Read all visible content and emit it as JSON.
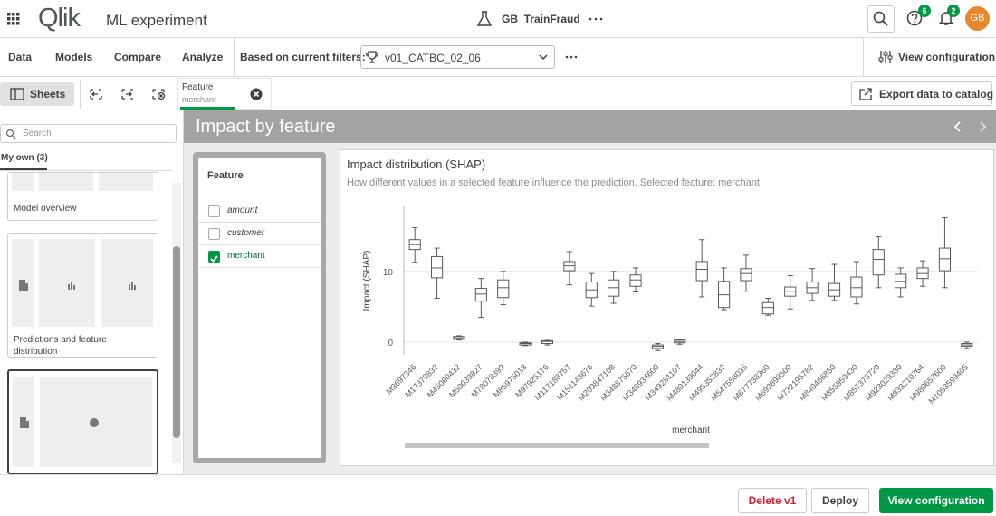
{
  "header": {
    "logo": "Qlik",
    "title": "ML experiment",
    "experiment": "GB_TrainFraud",
    "help_badge": "6",
    "notifications_badge": "2",
    "avatar": "GB"
  },
  "nav": {
    "tabs": [
      "Data",
      "Models",
      "Compare",
      "Analyze"
    ],
    "filter_label": "Based on current filters:",
    "model_select": "v01_CATBC_02_06",
    "view_configuration": "View configuration"
  },
  "toolbar": {
    "sheets": "Sheets",
    "filter_chip": {
      "label": "Feature",
      "value": "merchant"
    },
    "export": "Export data to catalog"
  },
  "sidebar": {
    "search_placeholder": "Search",
    "tab": "My own (3)",
    "sheets": [
      "Model overview",
      "Predictions and feature distribution"
    ]
  },
  "sheet": {
    "title": "Impact by feature"
  },
  "feature_list": {
    "title": "Feature",
    "items": [
      {
        "label": "amount",
        "checked": false
      },
      {
        "label": "customer",
        "checked": false
      },
      {
        "label": "merchant",
        "checked": true
      }
    ]
  },
  "chart_data": {
    "type": "box",
    "title": "Impact distribution (SHAP)",
    "subtitle": "How different values in a selected feature influence the prediction. Selected feature: merchant",
    "y_label": "Impact (SHAP)",
    "x_label": "merchant",
    "categories": [
      "M3697346",
      "M17379832",
      "M45060432",
      "M50039827",
      "M78078399",
      "M85975013",
      "M97925176",
      "M117188757",
      "M151143676",
      "M209847108",
      "M348875670",
      "M348934600",
      "M349281107",
      "M480139044",
      "M495352832",
      "M547558035",
      "M677738360",
      "M692898500",
      "M732195782",
      "M840466850",
      "M855959430",
      "M857378720",
      "M923029380",
      "M933210764",
      "M980657600",
      "M1053599405"
    ],
    "min": [
      11.3,
      6.2,
      0.3,
      3.5,
      5.3,
      -0.5,
      -0.4,
      8.1,
      5.1,
      5.5,
      7.1,
      -1.2,
      -0.3,
      6.4,
      4.6,
      7.2,
      3.8,
      4.7,
      5.9,
      5.9,
      5.4,
      7.7,
      6.4,
      7.9,
      7.7,
      -0.9
    ],
    "q1": [
      13.1,
      9.1,
      0.4,
      5.8,
      6.3,
      -0.4,
      -0.2,
      10.1,
      6.3,
      6.5,
      7.9,
      -0.9,
      -0.1,
      8.7,
      4.9,
      8.7,
      4.0,
      6.5,
      6.9,
      6.5,
      6.4,
      9.5,
      7.7,
      9.0,
      10.1,
      -0.6
    ],
    "median": [
      13.8,
      10.5,
      0.6,
      6.8,
      7.7,
      -0.2,
      0.1,
      10.8,
      7.4,
      7.7,
      8.8,
      -0.6,
      0.1,
      10.3,
      6.7,
      9.7,
      4.9,
      7.2,
      7.7,
      7.4,
      7.7,
      11.7,
      8.6,
      9.7,
      11.8,
      -0.4
    ],
    "q3": [
      14.5,
      12.1,
      0.8,
      7.6,
      8.8,
      -0.1,
      0.2,
      11.4,
      8.5,
      8.8,
      9.5,
      -0.4,
      0.3,
      11.4,
      8.6,
      10.4,
      5.6,
      7.8,
      8.5,
      8.3,
      9.2,
      13.1,
      9.6,
      10.5,
      13.3,
      -0.2
    ],
    "max": [
      16.2,
      13.3,
      0.9,
      9.0,
      10.0,
      0,
      0.4,
      12.8,
      9.7,
      10.0,
      10.5,
      -0.2,
      0.4,
      14.5,
      10.5,
      12.3,
      6.2,
      9.4,
      10.4,
      11.0,
      11.4,
      14.9,
      10.5,
      11.5,
      17.6,
      0
    ],
    "ylim": [
      -1.8,
      19.2
    ],
    "yticks": [
      0,
      10
    ],
    "grid": true,
    "color": "#595959"
  },
  "footer": {
    "buttons": [
      "Delete v1",
      "Deploy",
      "View configuration"
    ]
  }
}
